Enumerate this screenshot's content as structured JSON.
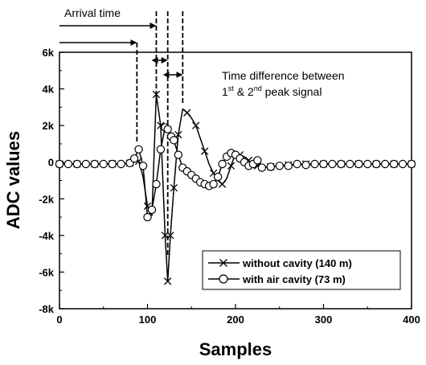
{
  "chart_data": {
    "type": "line",
    "xlabel": "Samples",
    "ylabel": "ADC values",
    "xlim": [
      0,
      400
    ],
    "ylim": [
      -8000,
      6000
    ],
    "x_ticks": [
      0,
      100,
      200,
      300,
      400
    ],
    "x_tick_labels": [
      "0",
      "100",
      "200",
      "300",
      "400"
    ],
    "y_ticks": [
      6000,
      4000,
      2000,
      0,
      -2000,
      -4000,
      -6000,
      -8000
    ],
    "y_tick_labels": [
      "6k",
      "4k",
      "2k",
      "0",
      "-2k",
      "-4k",
      "-6k",
      "-8k"
    ],
    "grid": false,
    "legend_position": "bottom-right",
    "series": [
      {
        "name": "without cavity (140 m)",
        "marker": "x",
        "color": "#000000",
        "x": [
          0,
          10,
          20,
          30,
          40,
          50,
          60,
          70,
          80,
          85,
          90,
          95,
          100,
          105,
          110,
          115,
          120,
          123,
          126,
          130,
          135,
          140,
          145,
          150,
          155,
          160,
          165,
          170,
          175,
          180,
          185,
          190,
          195,
          200,
          205,
          210,
          215,
          220,
          225,
          230,
          240,
          250,
          260,
          270,
          280,
          290,
          300,
          310,
          320,
          330,
          340,
          350,
          360,
          370,
          380,
          390,
          400
        ],
        "values": [
          -100,
          -100,
          -100,
          -100,
          -100,
          -80,
          -80,
          -100,
          -50,
          100,
          50,
          -800,
          -2400,
          -2900,
          3700,
          2000,
          -4000,
          -6500,
          -4000,
          -1400,
          1500,
          2900,
          2700,
          2400,
          2000,
          1300,
          600,
          -100,
          -600,
          -1000,
          -1200,
          -900,
          -200,
          500,
          400,
          300,
          100,
          -100,
          -200,
          -300,
          -250,
          -200,
          -150,
          -100,
          -100,
          -100,
          -100,
          -100,
          -100,
          -100,
          -100,
          -100,
          -100,
          -100,
          -100,
          -100,
          -100
        ]
      },
      {
        "name": "with air cavity (73 m)",
        "marker": "o",
        "color": "#000000",
        "x": [
          0,
          10,
          20,
          30,
          40,
          50,
          60,
          70,
          80,
          85,
          90,
          95,
          100,
          105,
          110,
          115,
          120,
          123,
          127,
          130,
          135,
          140,
          145,
          150,
          155,
          160,
          165,
          170,
          175,
          180,
          185,
          190,
          195,
          200,
          205,
          210,
          215,
          220,
          225,
          230,
          240,
          250,
          260,
          270,
          280,
          290,
          300,
          310,
          320,
          330,
          340,
          350,
          360,
          370,
          380,
          390,
          400
        ],
        "values": [
          -100,
          -100,
          -100,
          -100,
          -100,
          -100,
          -100,
          -100,
          -50,
          200,
          700,
          -200,
          -3000,
          -2600,
          -1200,
          700,
          1900,
          1800,
          1400,
          1200,
          400,
          -300,
          -500,
          -700,
          -900,
          -1100,
          -1200,
          -1300,
          -1200,
          -800,
          -100,
          300,
          500,
          400,
          200,
          0,
          -200,
          -100,
          100,
          -300,
          -250,
          -200,
          -200,
          -100,
          -150,
          -100,
          -100,
          -100,
          -100,
          -100,
          -100,
          -100,
          -100,
          -100,
          -100,
          -100,
          -100
        ]
      }
    ],
    "annotations": {
      "arrival_time": "Arrival time",
      "time_diff_line1": "Time difference between",
      "time_diff_line2_pre": "1",
      "time_diff_line2_sup1": "st",
      "time_diff_line2_mid": " & 2",
      "time_diff_line2_sup2": "nd",
      "time_diff_line2_post": " peak signal",
      "arrival_samples": [
        88,
        110
      ],
      "peak_samples": [
        110,
        123,
        140
      ]
    }
  }
}
